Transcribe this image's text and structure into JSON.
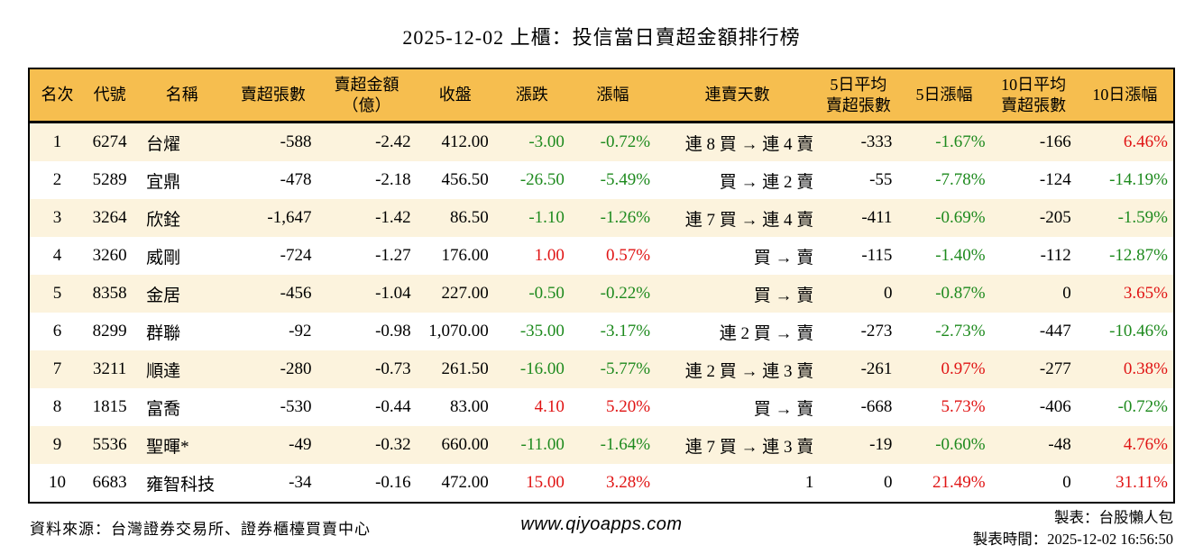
{
  "title": "2025-12-02 上櫃：投信當日賣超金額排行榜",
  "colors": {
    "header_bg": "#f6be4f",
    "row_stripe": "#fcf3dd",
    "up_red": "#e01414",
    "down_green": "#1e8a1e"
  },
  "chart_data": {
    "type": "table",
    "title": "2025-12-02 上櫃：投信當日賣超金額排行榜",
    "columns": [
      {
        "key": "rank",
        "label": "名次",
        "align": "center"
      },
      {
        "key": "code",
        "label": "代號",
        "align": "center"
      },
      {
        "key": "name",
        "label": "名稱",
        "align": "left"
      },
      {
        "key": "sell_volume",
        "label": "賣超張數",
        "align": "right"
      },
      {
        "key": "sell_amount",
        "label": "賣超金額\n（億）",
        "align": "right"
      },
      {
        "key": "close",
        "label": "收盤",
        "align": "right"
      },
      {
        "key": "change",
        "label": "漲跌",
        "align": "right"
      },
      {
        "key": "change_pct",
        "label": "漲幅",
        "align": "right"
      },
      {
        "key": "streak",
        "label": "連賣天數",
        "align": "right"
      },
      {
        "key": "avg5_volume",
        "label": "5日平均\n賣超張數",
        "align": "right"
      },
      {
        "key": "pct5",
        "label": "5日漲幅",
        "align": "right"
      },
      {
        "key": "avg10_volume",
        "label": "10日平均\n賣超張數",
        "align": "right"
      },
      {
        "key": "pct10",
        "label": "10日漲幅",
        "align": "right"
      }
    ],
    "rows": [
      {
        "rank": "1",
        "code": "6274",
        "name": "台燿",
        "sell_volume": "-588",
        "sell_amount": "-2.42",
        "close": "412.00",
        "change": {
          "text": "-3.00",
          "tone": "down"
        },
        "change_pct": {
          "text": "-0.72%",
          "tone": "down"
        },
        "streak": "連 8 買 → 連 4 賣",
        "avg5_volume": "-333",
        "pct5": {
          "text": "-1.67%",
          "tone": "down"
        },
        "avg10_volume": "-166",
        "pct10": {
          "text": "6.46%",
          "tone": "up"
        }
      },
      {
        "rank": "2",
        "code": "5289",
        "name": "宜鼎",
        "sell_volume": "-478",
        "sell_amount": "-2.18",
        "close": "456.50",
        "change": {
          "text": "-26.50",
          "tone": "down"
        },
        "change_pct": {
          "text": "-5.49%",
          "tone": "down"
        },
        "streak": "買 → 連 2 賣",
        "avg5_volume": "-55",
        "pct5": {
          "text": "-7.78%",
          "tone": "down"
        },
        "avg10_volume": "-124",
        "pct10": {
          "text": "-14.19%",
          "tone": "down"
        }
      },
      {
        "rank": "3",
        "code": "3264",
        "name": "欣銓",
        "sell_volume": "-1,647",
        "sell_amount": "-1.42",
        "close": "86.50",
        "change": {
          "text": "-1.10",
          "tone": "down"
        },
        "change_pct": {
          "text": "-1.26%",
          "tone": "down"
        },
        "streak": "連 7 買 → 連 4 賣",
        "avg5_volume": "-411",
        "pct5": {
          "text": "-0.69%",
          "tone": "down"
        },
        "avg10_volume": "-205",
        "pct10": {
          "text": "-1.59%",
          "tone": "down"
        }
      },
      {
        "rank": "4",
        "code": "3260",
        "name": "威剛",
        "sell_volume": "-724",
        "sell_amount": "-1.27",
        "close": "176.00",
        "change": {
          "text": "1.00",
          "tone": "up"
        },
        "change_pct": {
          "text": "0.57%",
          "tone": "up"
        },
        "streak": "買 → 賣",
        "avg5_volume": "-115",
        "pct5": {
          "text": "-1.40%",
          "tone": "down"
        },
        "avg10_volume": "-112",
        "pct10": {
          "text": "-12.87%",
          "tone": "down"
        }
      },
      {
        "rank": "5",
        "code": "8358",
        "name": "金居",
        "sell_volume": "-456",
        "sell_amount": "-1.04",
        "close": "227.00",
        "change": {
          "text": "-0.50",
          "tone": "down"
        },
        "change_pct": {
          "text": "-0.22%",
          "tone": "down"
        },
        "streak": "買 → 賣",
        "avg5_volume": "0",
        "pct5": {
          "text": "-0.87%",
          "tone": "down"
        },
        "avg10_volume": "0",
        "pct10": {
          "text": "3.65%",
          "tone": "up"
        }
      },
      {
        "rank": "6",
        "code": "8299",
        "name": "群聯",
        "sell_volume": "-92",
        "sell_amount": "-0.98",
        "close": "1,070.00",
        "change": {
          "text": "-35.00",
          "tone": "down"
        },
        "change_pct": {
          "text": "-3.17%",
          "tone": "down"
        },
        "streak": "連 2 買 → 賣",
        "avg5_volume": "-273",
        "pct5": {
          "text": "-2.73%",
          "tone": "down"
        },
        "avg10_volume": "-447",
        "pct10": {
          "text": "-10.46%",
          "tone": "down"
        }
      },
      {
        "rank": "7",
        "code": "3211",
        "name": "順達",
        "sell_volume": "-280",
        "sell_amount": "-0.73",
        "close": "261.50",
        "change": {
          "text": "-16.00",
          "tone": "down"
        },
        "change_pct": {
          "text": "-5.77%",
          "tone": "down"
        },
        "streak": "連 2 買 → 連 3 賣",
        "avg5_volume": "-261",
        "pct5": {
          "text": "0.97%",
          "tone": "up"
        },
        "avg10_volume": "-277",
        "pct10": {
          "text": "0.38%",
          "tone": "up"
        }
      },
      {
        "rank": "8",
        "code": "1815",
        "name": "富喬",
        "sell_volume": "-530",
        "sell_amount": "-0.44",
        "close": "83.00",
        "change": {
          "text": "4.10",
          "tone": "up"
        },
        "change_pct": {
          "text": "5.20%",
          "tone": "up"
        },
        "streak": "買 → 賣",
        "avg5_volume": "-668",
        "pct5": {
          "text": "5.73%",
          "tone": "up"
        },
        "avg10_volume": "-406",
        "pct10": {
          "text": "-0.72%",
          "tone": "down"
        }
      },
      {
        "rank": "9",
        "code": "5536",
        "name": "聖暉*",
        "sell_volume": "-49",
        "sell_amount": "-0.32",
        "close": "660.00",
        "change": {
          "text": "-11.00",
          "tone": "down"
        },
        "change_pct": {
          "text": "-1.64%",
          "tone": "down"
        },
        "streak": "連 7 買 → 連 3 賣",
        "avg5_volume": "-19",
        "pct5": {
          "text": "-0.60%",
          "tone": "down"
        },
        "avg10_volume": "-48",
        "pct10": {
          "text": "4.76%",
          "tone": "up"
        }
      },
      {
        "rank": "10",
        "code": "6683",
        "name": "雍智科技",
        "sell_volume": "-34",
        "sell_amount": "-0.16",
        "close": "472.00",
        "change": {
          "text": "15.00",
          "tone": "up"
        },
        "change_pct": {
          "text": "3.28%",
          "tone": "up"
        },
        "streak": "1",
        "avg5_volume": "0",
        "pct5": {
          "text": "21.49%",
          "tone": "up"
        },
        "avg10_volume": "0",
        "pct10": {
          "text": "31.11%",
          "tone": "up"
        }
      }
    ]
  },
  "footer": {
    "source": "資料來源：台灣證券交易所、證券櫃檯買賣中心",
    "site": "www.qiyoapps.com",
    "maker": "製表：台股懶人包",
    "time": "製表時間：2025-12-02 16:56:50"
  }
}
